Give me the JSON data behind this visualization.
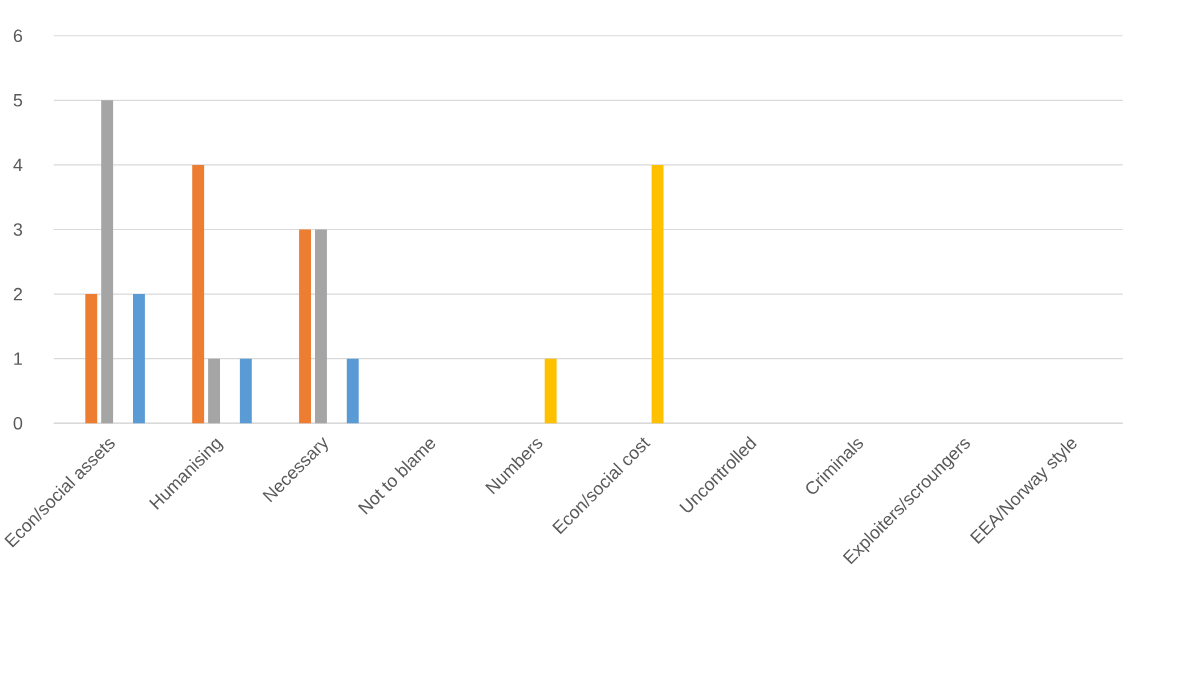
{
  "chart_data": {
    "type": "bar",
    "categories": [
      "Econ/social assets",
      "Humanising",
      "Necessary",
      "Not to blame",
      "Numbers",
      "Econ/social cost",
      "Uncontrolled",
      "Criminals",
      "Exploiters/scroungers",
      "EEA/Norway style"
    ],
    "series": [
      {
        "color": "#4472c4",
        "values": [
          0,
          0,
          0,
          0,
          0,
          0,
          0,
          0,
          0,
          0
        ]
      },
      {
        "color": "#ed7d31",
        "values": [
          2,
          4,
          3,
          0,
          0,
          0,
          0,
          0,
          0,
          0
        ]
      },
      {
        "color": "#a5a5a5",
        "values": [
          5,
          1,
          3,
          0,
          0,
          0,
          0,
          0,
          0,
          0
        ]
      },
      {
        "color": "#ffc000",
        "values": [
          0,
          0,
          0,
          0,
          1,
          4,
          0,
          0,
          0,
          0
        ]
      },
      {
        "color": "#5b9bd5",
        "values": [
          2,
          1,
          1,
          0,
          0,
          0,
          0,
          0,
          0,
          0
        ]
      }
    ],
    "ylim": [
      0,
      6
    ],
    "yticks": [
      0,
      1,
      2,
      3,
      4,
      5,
      6
    ],
    "grid": "y"
  }
}
